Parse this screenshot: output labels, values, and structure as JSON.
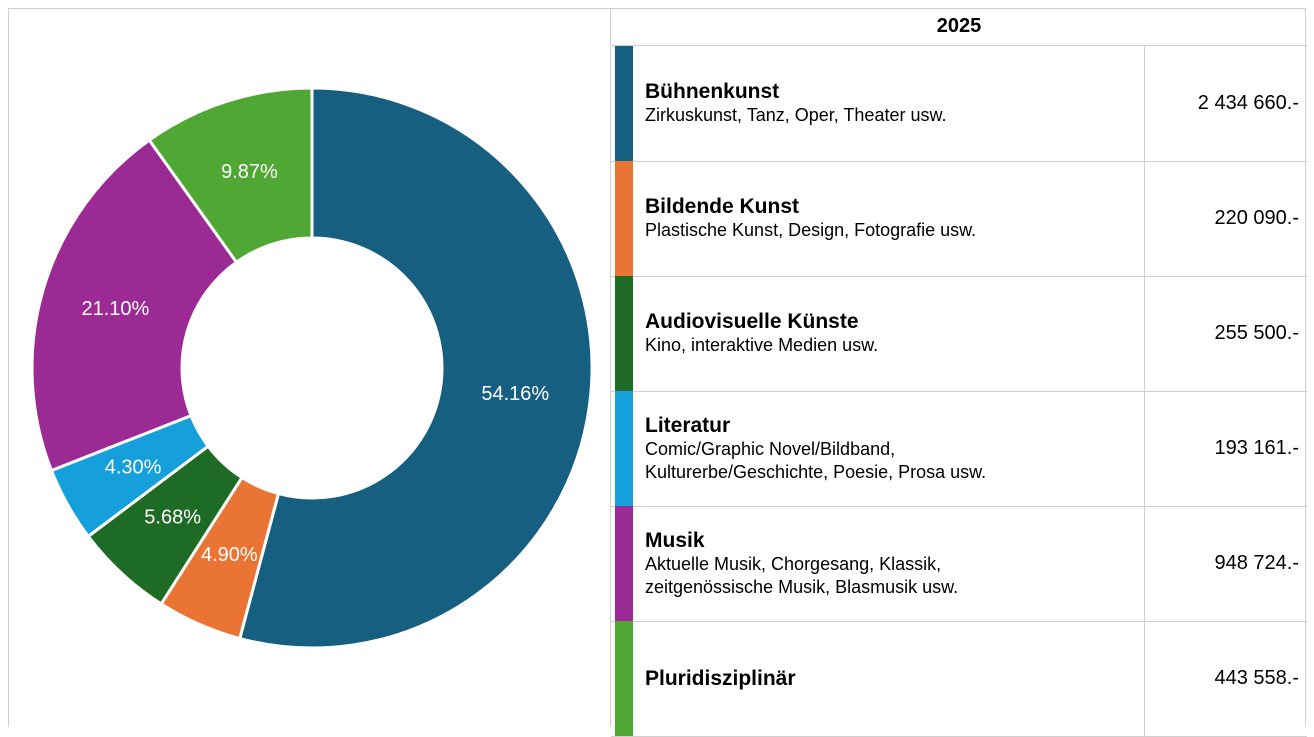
{
  "chart_data": {
    "type": "donut",
    "categories": [
      "Bühnenkunst",
      "Bildende Kunst",
      "Audiovisuelle Künste",
      "Literatur",
      "Musik",
      "Pluridisziplinär"
    ],
    "values": [
      54.16,
      4.9,
      5.68,
      4.3,
      21.1,
      9.87
    ],
    "value_labels": [
      "54.16%",
      "4.90%",
      "5.68%",
      "4.30%",
      "21.10%",
      "9.87%"
    ],
    "colors": [
      "#175f80",
      "#ea7434",
      "#1e6b25",
      "#15a0dc",
      "#9b2a95",
      "#50a834"
    ]
  },
  "table": {
    "header": "2025",
    "rows": [
      {
        "description": [
          "Zirkuskunst, Tanz, Oper, Theater usw."
        ],
        "amount": "2 434 660.-"
      },
      {
        "description": [
          "Plastische Kunst, Design, Fotografie usw."
        ],
        "amount": "220 090.-"
      },
      {
        "description": [
          "Kino, interaktive Medien usw."
        ],
        "amount": "255 500.-"
      },
      {
        "description": [
          "Comic/Graphic Novel/Bildband,",
          "Kulturerbe/Geschichte, Poesie, Prosa usw."
        ],
        "amount": "193 161.-"
      },
      {
        "description": [
          "Aktuelle Musik, Chorgesang, Klassik,",
          "zeitgenössische Musik, Blasmusik usw."
        ],
        "amount": "948 724.-"
      },
      {
        "amount": "443 558.-"
      }
    ]
  }
}
